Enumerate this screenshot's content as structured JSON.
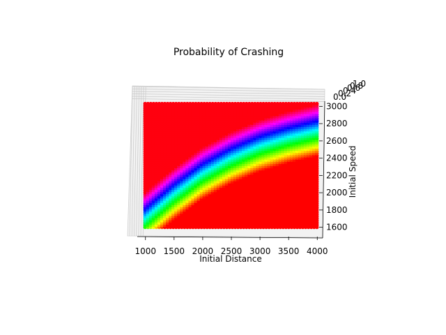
{
  "chart_data": {
    "type": "scatter",
    "projection": "3d",
    "title": "Probability of Crashing",
    "xlabel": "Initial Distance",
    "ylabel": "Initial Speed",
    "zlabel": "",
    "xlim": [
      900,
      4100
    ],
    "ylim": [
      1500,
      3100
    ],
    "zlim": [
      0.0,
      1.0
    ],
    "xticks": [
      "1000",
      "1500",
      "2000",
      "2500",
      "3000",
      "3500",
      "4000"
    ],
    "yticks": [
      "1600",
      "1800",
      "2000",
      "2200",
      "2400",
      "2600",
      "2800",
      "3000"
    ],
    "zticks": [
      "0.0",
      "0.2",
      "0.4",
      "0.6",
      "0.8",
      "1.0"
    ],
    "colormap": "hsv",
    "grid": true,
    "domain": {
      "x": [
        1000,
        4000
      ],
      "speed_min_at_x_min": 1600,
      "speed_min_at_x_max": 1600,
      "speed_max_at_x_min": 2050,
      "speed_max_at_x_max": 3030
    },
    "probability_surface": {
      "description": "color encodes probability; boundary speed rises with distance",
      "boundary_points": [
        {
          "x": 1000,
          "y": 2000
        },
        {
          "x": 1500,
          "y": 2280
        },
        {
          "x": 2000,
          "y": 2520
        },
        {
          "x": 2500,
          "y": 2700
        },
        {
          "x": 3000,
          "y": 2840
        },
        {
          "x": 3500,
          "y": 2940
        },
        {
          "x": 4000,
          "y": 3020
        }
      ],
      "band_width_speed": 600
    }
  }
}
